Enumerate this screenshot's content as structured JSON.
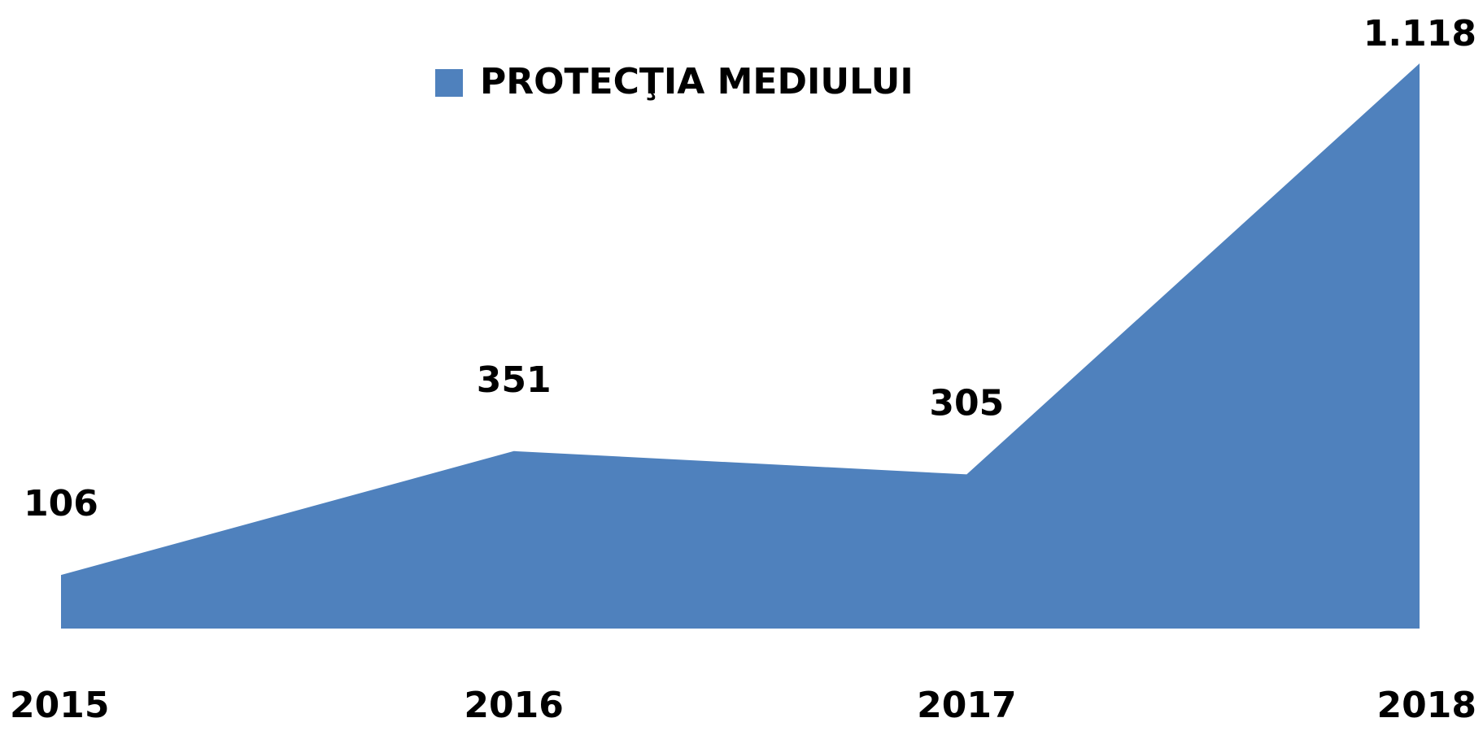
{
  "chart_data": {
    "type": "area",
    "categories": [
      "2015",
      "2016",
      "2017",
      "2018"
    ],
    "series": [
      {
        "name": "PROTECŢIA MEDIULUI",
        "color": "#4f81bd",
        "values": [
          106,
          351,
          305,
          1118
        ],
        "value_labels": [
          "106",
          "351",
          "305",
          "1.118"
        ]
      }
    ],
    "legend": "top"
  }
}
